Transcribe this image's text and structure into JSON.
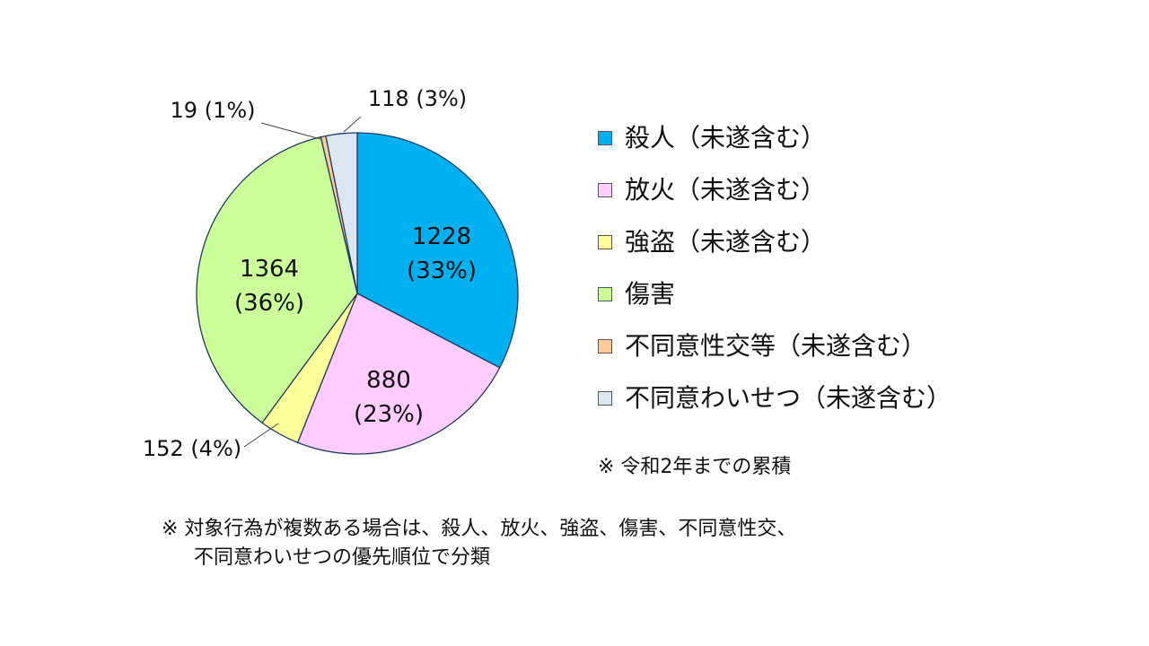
{
  "chart_data": {
    "type": "pie",
    "start_angle_deg": 0,
    "direction": "clockwise",
    "slices": [
      {
        "label": "殺人（未遂含む）",
        "value": 1228,
        "value_label": "1228",
        "percent_label": "(33%)",
        "color": "#00b0f0"
      },
      {
        "label": "放火（未遂含む）",
        "value": 880,
        "value_label": "880",
        "percent_label": "(23%)",
        "color": "#ffccff"
      },
      {
        "label": "強盗（未遂含む）",
        "value": 152,
        "value_label": "152 (4%)",
        "percent_label": "",
        "color": "#ffff99"
      },
      {
        "label": "傷害",
        "value": 1364,
        "value_label": "1364",
        "percent_label": "(36%)",
        "color": "#ccff99"
      },
      {
        "label": "不同意性交等（未遂含む）",
        "value": 19,
        "value_label": "19 (1%)",
        "percent_label": "",
        "color": "#ffcc99"
      },
      {
        "label": "不同意わいせつ（未遂含む）",
        "value": 118,
        "value_label": "118 (3%)",
        "percent_label": "",
        "color": "#dce6f2"
      }
    ]
  },
  "notes": {
    "right": "※ 令和2年までの累積",
    "bottom_line1": "※ 対象行為が複数ある場合は、殺人、放火、強盗、傷害、不同意性交、",
    "bottom_line2": "不同意わいせつの優先順位で分類"
  }
}
